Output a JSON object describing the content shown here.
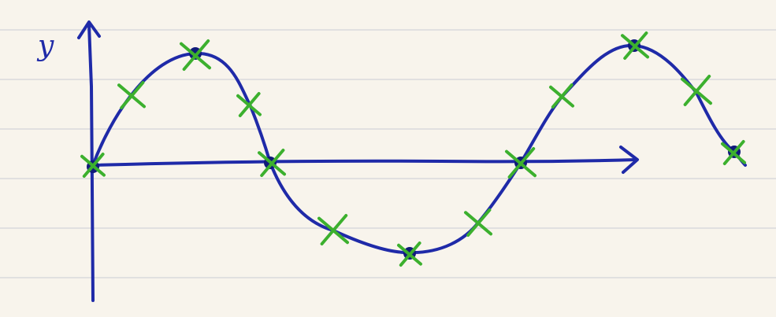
{
  "diagram": {
    "y_axis_label": "y",
    "colors": {
      "paper": "#f8f4ec",
      "rule_lines": "#d9d9dc",
      "ink": "#1f2aa8",
      "marks": "#3cb02e",
      "dot": "#101a7a"
    },
    "icons": {
      "y_arrow": "arrow-up-icon",
      "x_arrow": "arrow-right-icon",
      "cross": "cross-mark-icon"
    }
  }
}
